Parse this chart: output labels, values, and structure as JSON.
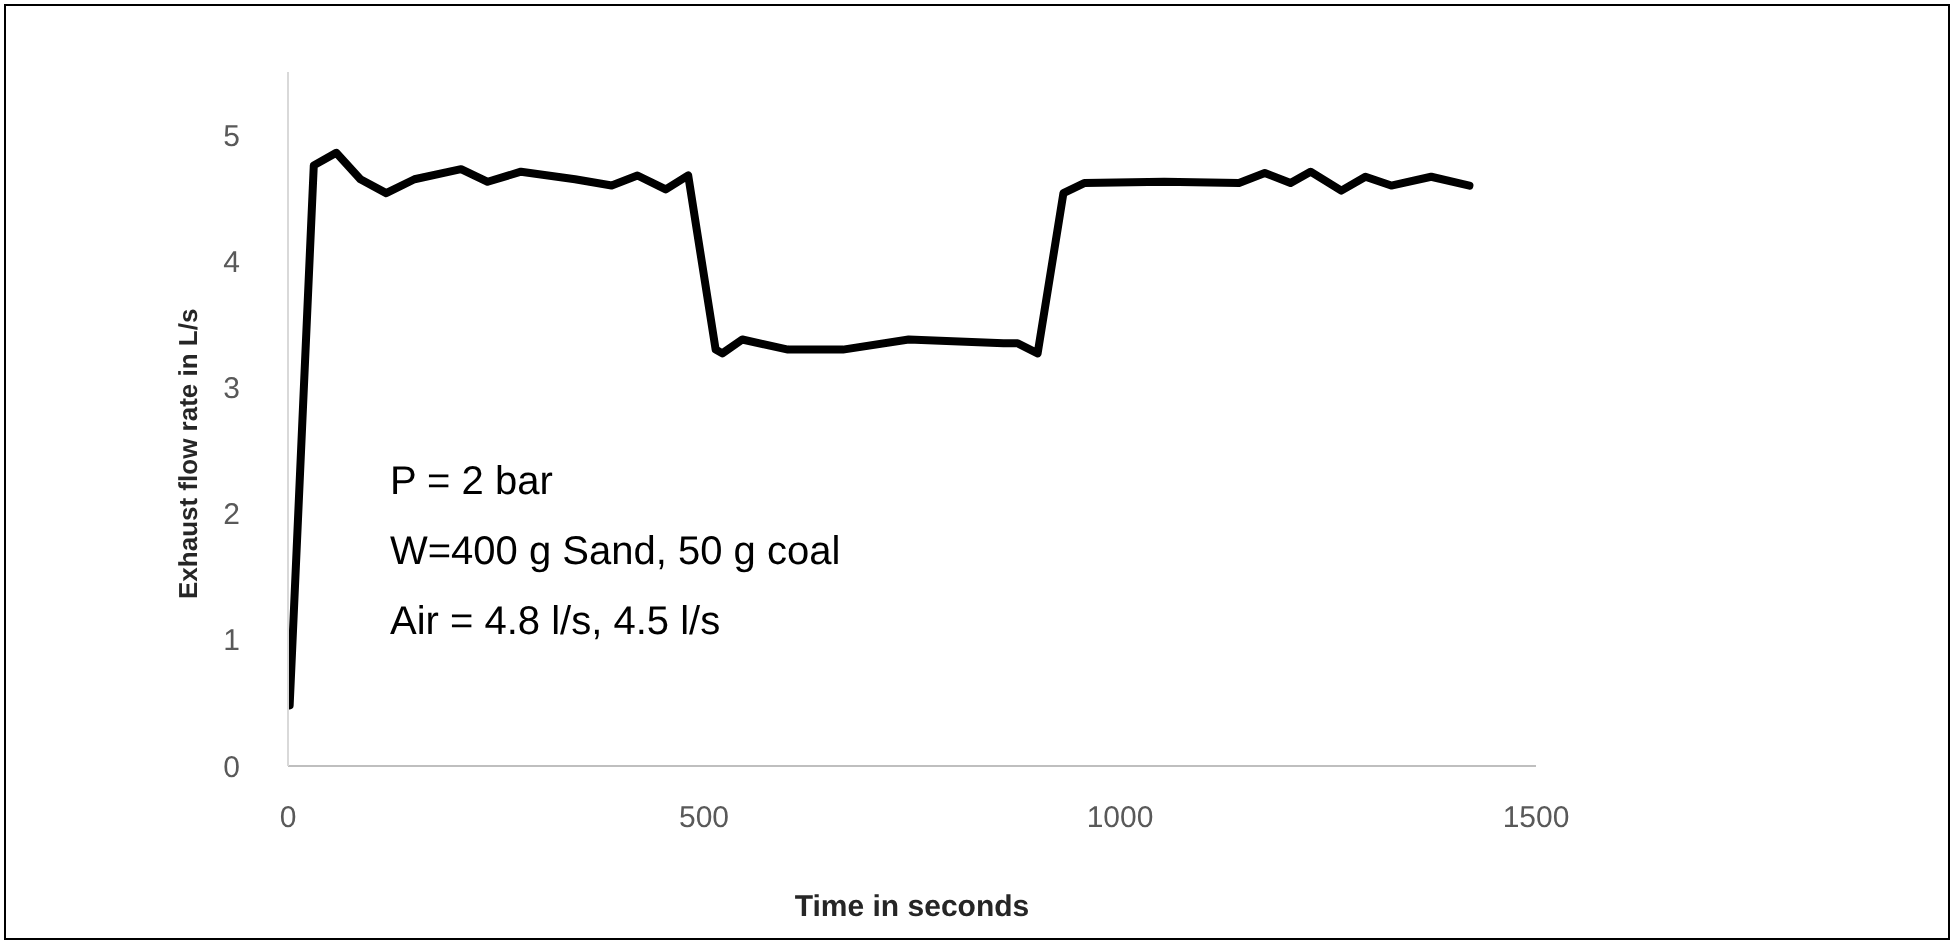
{
  "chart_data": {
    "type": "line",
    "xlabel": "Time in seconds",
    "ylabel": "Exhaust flow rate in L/s",
    "x": [
      2,
      31,
      58,
      87,
      118,
      152,
      208,
      240,
      280,
      345,
      389,
      420,
      454,
      481,
      514,
      522,
      546,
      601,
      667,
      746,
      860,
      877,
      901,
      932,
      957,
      1053,
      1143,
      1174,
      1205,
      1229,
      1266,
      1295,
      1326,
      1374,
      1420
    ],
    "series": [
      {
        "color": "#000000",
        "values": [
          0.48,
          4.76,
          4.86,
          4.65,
          4.54,
          4.65,
          4.73,
          4.63,
          4.71,
          4.65,
          4.6,
          4.68,
          4.57,
          4.68,
          3.3,
          3.27,
          3.38,
          3.3,
          3.3,
          3.38,
          3.35,
          3.35,
          3.27,
          4.54,
          4.62,
          4.63,
          4.62,
          4.7,
          4.62,
          4.71,
          4.56,
          4.67,
          4.6,
          4.67,
          4.6
        ]
      }
    ],
    "xlim": [
      0,
      1500
    ],
    "xticks": [
      0,
      500,
      1000,
      1500
    ],
    "ylim": [
      0,
      5.5
    ],
    "yticks": [
      0,
      1,
      2,
      3,
      4,
      5
    ],
    "grid": false,
    "legend": false,
    "marker": "none",
    "line_style": "solid",
    "annotations": [
      "P = 2 bar",
      "W=400 g Sand, 50 g coal",
      "Air = 4.8 l/s, 4.5 l/s"
    ]
  }
}
